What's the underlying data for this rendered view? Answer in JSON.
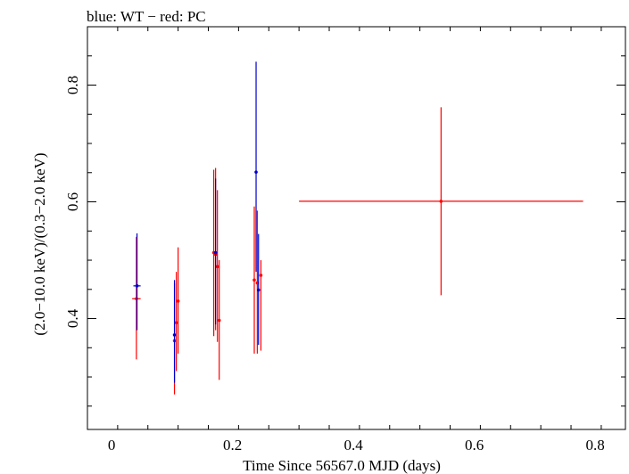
{
  "chart_data": {
    "type": "scatter",
    "title": "blue: WT − red: PC",
    "xlabel": "Time Since 56567.0 MJD (days)",
    "ylabel": "(2.0−10.0 keV)/(0.3−2.0 keV)",
    "xlim": [
      -0.04,
      0.85
    ],
    "ylim": [
      0.21,
      0.9
    ],
    "x_ticks": [
      0,
      0.2,
      0.4,
      0.6,
      0.8
    ],
    "x_tick_labels": [
      "0",
      "0.2",
      "0.4",
      "0.6",
      "0.8"
    ],
    "y_ticks": [
      0.4,
      0.6,
      0.8
    ],
    "y_tick_labels": [
      "0.4",
      "0.6",
      "0.8"
    ],
    "grid": false,
    "colors": {
      "blue": "#0000cc",
      "red": "#ff0000",
      "axis": "#000000"
    },
    "series": [
      {
        "color": "#0000cc",
        "points": [
          {
            "x": 0.042,
            "y": 0.456,
            "xerr": 0.006,
            "ylo": 0.38,
            "yhi": 0.546
          },
          {
            "x": 0.104,
            "y": 0.372,
            "xerr": 0.002,
            "ylo": 0.29,
            "yhi": 0.466
          },
          {
            "x": 0.172,
            "y": 0.513,
            "xerr": 0.002,
            "ylo": 0.39,
            "yhi": 0.64
          },
          {
            "x": 0.239,
            "y": 0.651,
            "xerr": 0.002,
            "ylo": 0.48,
            "yhi": 0.84
          },
          {
            "x": 0.243,
            "y": 0.449,
            "xerr": 0.002,
            "ylo": 0.355,
            "yhi": 0.545
          }
        ]
      },
      {
        "color": "#ff0000",
        "points": [
          {
            "x": 0.041,
            "y": 0.434,
            "xerr": 0.007,
            "ylo": 0.33,
            "yhi": 0.54
          },
          {
            "x": 0.104,
            "y": 0.362,
            "xerr": 0.002,
            "ylo": 0.27,
            "yhi": 0.46
          },
          {
            "x": 0.107,
            "y": 0.393,
            "xerr": 0.002,
            "ylo": 0.31,
            "yhi": 0.48
          },
          {
            "x": 0.11,
            "y": 0.43,
            "xerr": 0.002,
            "ylo": 0.34,
            "yhi": 0.522
          },
          {
            "x": 0.169,
            "y": 0.513,
            "xerr": 0.002,
            "ylo": 0.37,
            "yhi": 0.655
          },
          {
            "x": 0.172,
            "y": 0.51,
            "xerr": 0.002,
            "ylo": 0.38,
            "yhi": 0.658
          },
          {
            "x": 0.175,
            "y": 0.489,
            "xerr": 0.002,
            "ylo": 0.36,
            "yhi": 0.62
          },
          {
            "x": 0.178,
            "y": 0.397,
            "xerr": 0.002,
            "ylo": 0.295,
            "yhi": 0.5
          },
          {
            "x": 0.236,
            "y": 0.466,
            "xerr": 0.002,
            "ylo": 0.34,
            "yhi": 0.592
          },
          {
            "x": 0.241,
            "y": 0.461,
            "xerr": 0.002,
            "ylo": 0.34,
            "yhi": 0.585
          },
          {
            "x": 0.247,
            "y": 0.474,
            "xerr": 0.002,
            "ylo": 0.345,
            "yhi": 0.5
          },
          {
            "x": 0.545,
            "y": 0.601,
            "xerr": 0.235,
            "ylo": 0.44,
            "yhi": 0.762
          }
        ]
      }
    ]
  }
}
